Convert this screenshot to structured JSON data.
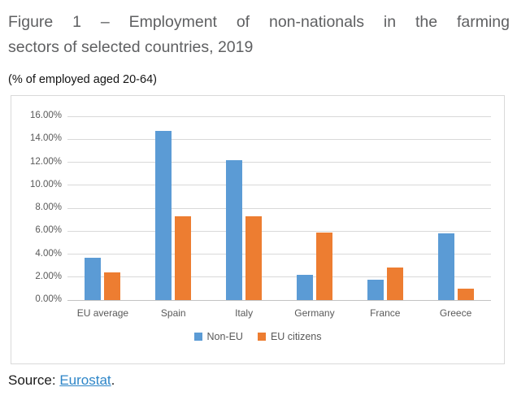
{
  "figure": {
    "title_line1": "Figure 1 – Employment of non-nationals in the farming",
    "title_line2": "sectors of selected countries, 2019",
    "subtitle": "(% of employed aged 20-64)",
    "source_prefix": "Source: ",
    "source_link": "Eurostat",
    "source_suffix": "."
  },
  "chart_data": {
    "type": "bar",
    "title": "",
    "xlabel": "",
    "ylabel": "% of employed aged 20-64",
    "categories": [
      "EU average",
      "Spain",
      "Italy",
      "Germany",
      "France",
      "Greece"
    ],
    "series": [
      {
        "name": "Non-EU",
        "color": "#5B9BD5",
        "values": [
          3.7,
          14.7,
          12.2,
          2.2,
          1.8,
          5.8
        ]
      },
      {
        "name": "EU citizens",
        "color": "#ED7D31",
        "values": [
          2.4,
          7.3,
          7.3,
          5.9,
          2.8,
          1.0
        ]
      }
    ],
    "ylim": [
      0,
      16
    ],
    "ytick_step": 2,
    "ytick_labels": [
      "0.00%",
      "2.00%",
      "4.00%",
      "6.00%",
      "8.00%",
      "10.00%",
      "12.00%",
      "14.00%",
      "16.00%"
    ],
    "grid": true,
    "legend_position": "bottom"
  },
  "colors": {
    "title_text": "#5f6062",
    "axis_text": "#595959",
    "gridline": "#D9D9D9",
    "chart_border": "#D9D9D9",
    "link": "#2E86C8",
    "body_text": "#1a1a1a"
  }
}
